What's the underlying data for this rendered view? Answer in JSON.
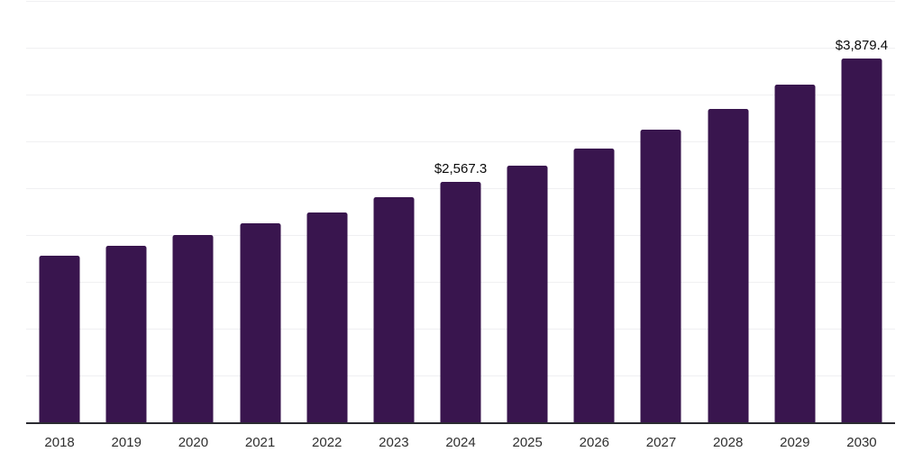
{
  "chart_data": {
    "type": "bar",
    "categories": [
      "2018",
      "2019",
      "2020",
      "2021",
      "2022",
      "2023",
      "2024",
      "2025",
      "2026",
      "2027",
      "2028",
      "2029",
      "2030"
    ],
    "values": [
      1778,
      1880,
      2002,
      2120,
      2242,
      2402,
      2567.3,
      2738,
      2923,
      3125,
      3343,
      3602,
      3879.4
    ],
    "data_labels": [
      {
        "category": "2024",
        "text": "$2,567.3"
      },
      {
        "category": "2030",
        "text": "$3,879.4"
      }
    ],
    "title": "",
    "xlabel": "",
    "ylabel": "",
    "ylim": [
      0,
      4500
    ],
    "grid": "horizontal",
    "legend": "none",
    "bar_color": "#39154E",
    "gridline_color": "#f0f0f2",
    "axis_line_color": "#2b2b31",
    "data_label_color": "#0a0a0a",
    "tick_label_color": "#2f2f2f"
  }
}
